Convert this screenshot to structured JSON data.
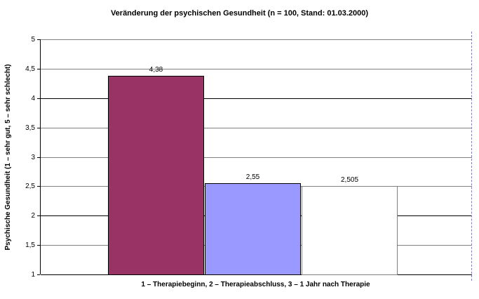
{
  "chart_data": {
    "type": "bar",
    "title": "Veränderung der psychischen Gesundheit (n = 100, Stand: 01.03.2000)",
    "xlabel": "1 – Therapiebeginn, 2 – Therapieabschluss, 3 – 1 Jahr nach Therapie",
    "ylabel": "Psychische Gesundheit (1 – sehr gut, 5 – sehr schlecht)",
    "categories": [
      "1 – Therapiebeginn",
      "2 – Therapieabschluss",
      "3 – 1 Jahr nach Therapie"
    ],
    "values": [
      4.38,
      2.55,
      2.505
    ],
    "value_labels": [
      "4,38",
      "2,55",
      "2,505"
    ],
    "series_colors": [
      "#993366",
      "#9999FF",
      "#FFFFFF"
    ],
    "bar_border_colors": [
      "#000000",
      "#000000",
      "#808080"
    ],
    "ylim": [
      1,
      5
    ],
    "yticks": [
      {
        "value": 5,
        "label": "5",
        "emphasis": false
      },
      {
        "value": 4.5,
        "label": "4,5",
        "emphasis": false
      },
      {
        "value": 4,
        "label": "4",
        "emphasis": true
      },
      {
        "value": 3.5,
        "label": "3,5",
        "emphasis": false
      },
      {
        "value": 3,
        "label": "3",
        "emphasis": false
      },
      {
        "value": 2.5,
        "label": "2,5",
        "emphasis": false
      },
      {
        "value": 2,
        "label": "2",
        "emphasis": true
      },
      {
        "value": 1.5,
        "label": "1,5",
        "emphasis": false
      },
      {
        "value": 1,
        "label": "1",
        "emphasis": true
      }
    ],
    "grid": true,
    "legend_position": "none",
    "gridline_color": "#808080",
    "emphasis_gridline_color": "#000000",
    "plot_right_border": {
      "style": "dashed",
      "color": "#8080b8"
    }
  }
}
